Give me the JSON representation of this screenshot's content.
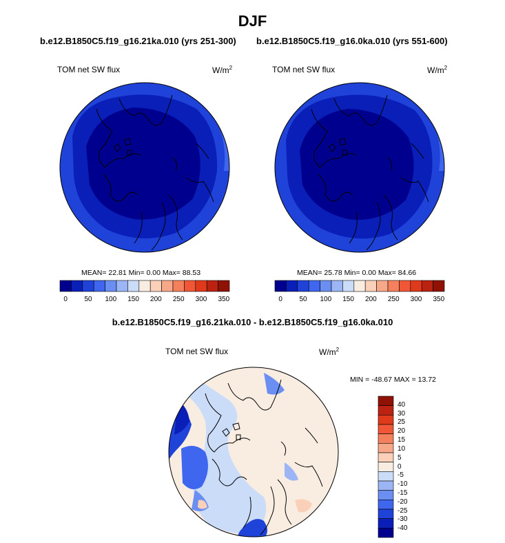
{
  "title": "DJF",
  "panels": [
    {
      "case": "b.e12.B1850C5.f19_g16.21ka.010 (yrs 251-300)",
      "variable": "TOM net SW flux",
      "units": "W/m",
      "units_exp": "2",
      "stats_text": "MEAN=  22.81  Min=   0.00  Max=  88.53",
      "colorbar_ticks": [
        "0",
        "50",
        "100",
        "150",
        "200",
        "250",
        "300",
        "350"
      ]
    },
    {
      "case": "b.e12.B1850C5.f19_g16.0ka.010 (yrs 551-600)",
      "variable": "TOM net SW flux",
      "units": "W/m",
      "units_exp": "2",
      "stats_text": "MEAN=  25.78  Min=   0.00  Max=  84.66",
      "colorbar_ticks": [
        "0",
        "50",
        "100",
        "150",
        "200",
        "250",
        "300",
        "350"
      ]
    }
  ],
  "difference": {
    "title": "b.e12.B1850C5.f19_g16.21ka.010 - b.e12.B1850C5.f19_g16.0ka.010",
    "variable": "TOM net SW flux",
    "units": "W/m",
    "units_exp": "2",
    "stats_text": "MIN = -48.67 MAX =  13.72",
    "colorbar_ticks": [
      "40",
      "30",
      "25",
      "20",
      "15",
      "10",
      "5",
      "0",
      "-5",
      "-10",
      "-15",
      "-20",
      "-25",
      "-30",
      "-40"
    ]
  },
  "colors": {
    "abs_scale": [
      "#00008f",
      "#0a1fb8",
      "#1f43d8",
      "#3f66ee",
      "#6a8ef2",
      "#9cb6f5",
      "#cbdcf9",
      "#f9ede2",
      "#fad0b8",
      "#f7a889",
      "#f4805d",
      "#ef5736",
      "#df3a1c",
      "#bc2211",
      "#8f1205"
    ],
    "diff_scale": [
      "#8f1205",
      "#bc2211",
      "#df3a1c",
      "#ef5736",
      "#f4805d",
      "#f7a889",
      "#fad0b8",
      "#f9ede2",
      "#cbdcf9",
      "#9cb6f5",
      "#6a8ef2",
      "#3f66ee",
      "#1f43d8",
      "#0a1fb8",
      "#00008f"
    ],
    "field_outer": "#1f43d8",
    "field_mid": "#0a1fb8",
    "field_inner": "#00008f",
    "diff_bg": "#f9ede2",
    "diff_light": "#cbdcf9"
  }
}
